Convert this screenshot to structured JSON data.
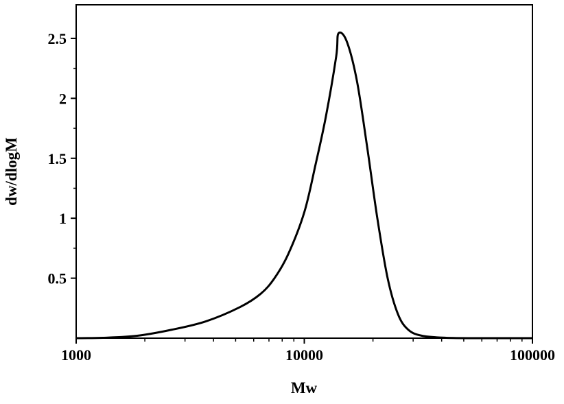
{
  "chart_data": {
    "type": "line",
    "x_label": "Mw",
    "y_label": "dw/dlogM",
    "xscale": "log",
    "xlim": [
      1000,
      100000
    ],
    "xticks": [
      1000,
      10000,
      100000
    ],
    "ylim": [
      0,
      2.78
    ],
    "yticks": [
      0.5,
      1.0,
      1.5,
      2.0,
      2.5
    ],
    "grid": false,
    "series": [
      {
        "color": "#000000",
        "x": [
          1000,
          1310,
          1852,
          2620,
          3700,
          5235,
          6440,
          7400,
          8500,
          10000,
          11210,
          12440,
          13800,
          14100,
          15310,
          16990,
          18840,
          20900,
          23190,
          25740,
          28560,
          32800,
          41800,
          59050,
          100000
        ],
        "values": [
          0,
          0.003,
          0.02,
          0.07,
          0.14,
          0.26,
          0.37,
          0.5,
          0.7,
          1.05,
          1.45,
          1.85,
          2.35,
          2.54,
          2.48,
          2.15,
          1.6,
          1.0,
          0.5,
          0.2,
          0.07,
          0.02,
          0.003,
          0,
          0
        ]
      }
    ]
  }
}
